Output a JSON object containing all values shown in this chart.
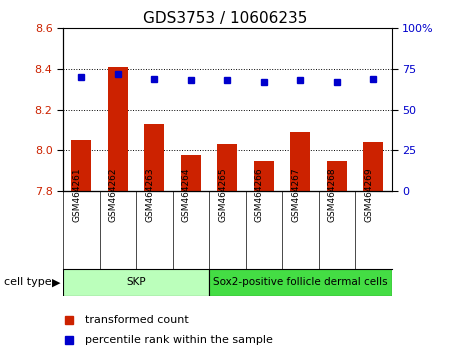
{
  "title": "GDS3753 / 10606235",
  "samples": [
    "GSM464261",
    "GSM464262",
    "GSM464263",
    "GSM464264",
    "GSM464265",
    "GSM464266",
    "GSM464267",
    "GSM464268",
    "GSM464269"
  ],
  "transformed_counts": [
    8.05,
    8.41,
    8.13,
    7.98,
    8.03,
    7.95,
    8.09,
    7.95,
    8.04
  ],
  "percentile_ranks": [
    70,
    72,
    69,
    68,
    68,
    67,
    68,
    67,
    69
  ],
  "ylim_left": [
    7.8,
    8.6
  ],
  "ylim_right": [
    0,
    100
  ],
  "yticks_left": [
    7.8,
    8.0,
    8.2,
    8.4,
    8.6
  ],
  "yticks_right": [
    0,
    25,
    50,
    75,
    100
  ],
  "bar_color": "#cc2200",
  "dot_color": "#0000cc",
  "cell_groups": [
    {
      "label": "SKP",
      "start": 0,
      "end": 3,
      "color": "#bbffbb"
    },
    {
      "label": "Sox2-positive follicle dermal cells",
      "start": 4,
      "end": 8,
      "color": "#44dd44"
    }
  ],
  "legend_bar_label": "transformed count",
  "legend_dot_label": "percentile rank within the sample",
  "cell_type_label": "cell type",
  "background_color": "#ffffff",
  "plot_bg_color": "#ffffff",
  "tick_label_color_left": "#cc2200",
  "tick_label_color_right": "#0000cc",
  "sample_bg_color": "#bbbbbb",
  "title_fontsize": 11
}
